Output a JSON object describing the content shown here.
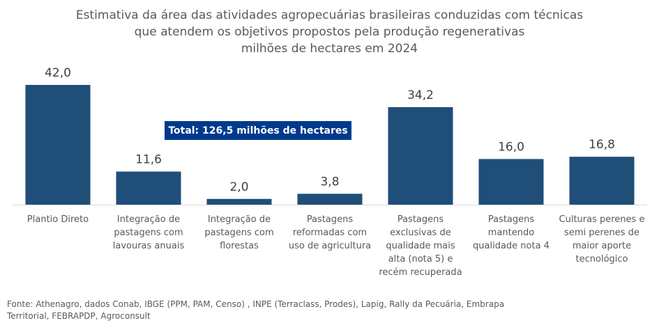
{
  "chart_data": {
    "type": "bar",
    "title_lines": [
      "Estimativa da área das atividades agropecuárias brasileiras conduzidas com técnicas",
      "que atendem os objetivos propostos pela produção regenerativas",
      "milhões de hectares em 2024"
    ],
    "categories": [
      [
        "Plantio Direto"
      ],
      [
        "Integração de",
        "pastagens com",
        "lavouras anuais"
      ],
      [
        "Integração de",
        "pastagens com",
        "florestas"
      ],
      [
        "Pastagens",
        "reformadas com",
        "uso de agricultura"
      ],
      [
        "Pastagens",
        "exclusivas de",
        "qualidade mais",
        "alta (nota 5) e",
        "recém recuperada"
      ],
      [
        "Pastagens",
        "mantendo",
        "qualidade nota 4"
      ],
      [
        "Culturas perenes e",
        "semi perenes de",
        "maior aporte",
        "tecnológico"
      ]
    ],
    "values": [
      42.0,
      11.6,
      2.0,
      3.8,
      34.2,
      16.0,
      16.8
    ],
    "value_labels": [
      "42,0",
      "11,6",
      "2,0",
      "3,8",
      "34,2",
      "16,0",
      "16,8"
    ],
    "ylim": [
      0,
      42
    ],
    "bar_color": "#1f4e79",
    "annotation": "Total: 126,5 milhões de hectares",
    "annotation_color": "#003a8c"
  },
  "source_lines": [
    "Fonte: Athenagro, dados Conab, IBGE (PPM, PAM, Censo) , INPE (Terraclass, Prodes),  Lapig, Rally da Pecuária,  Embrapa",
    "Territorial, FEBRAPDP, Agroconsult"
  ]
}
